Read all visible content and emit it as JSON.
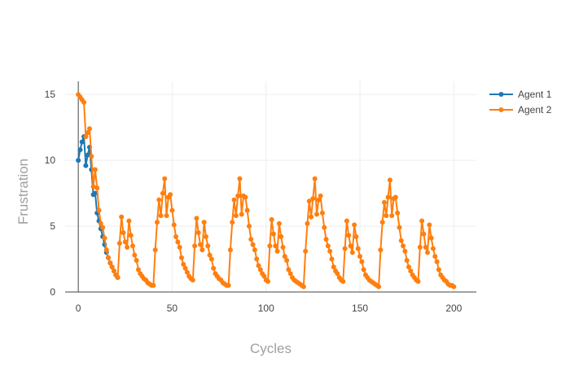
{
  "chart_data": {
    "type": "line",
    "title": "",
    "xlabel": "Cycles",
    "ylabel": "Frustration",
    "xlim": [
      -7,
      212
    ],
    "ylim": [
      0,
      16
    ],
    "x_ticks": [
      0,
      50,
      100,
      150,
      200
    ],
    "y_ticks": [
      0,
      5,
      10,
      15
    ],
    "x_tick_labels": [
      "0",
      "50",
      "100",
      "150",
      "200"
    ],
    "y_tick_labels": [
      "0",
      "5",
      "10",
      "15"
    ],
    "grid": true,
    "legend_position": "top-right",
    "series": [
      {
        "name": "Agent 1",
        "color": "#1f77b4",
        "x": [
          0,
          1,
          2,
          3,
          4,
          5,
          6,
          7,
          8,
          9,
          10,
          11,
          12,
          13,
          14,
          15,
          16,
          17,
          18,
          19,
          20,
          21
        ],
        "y": [
          10.0,
          10.8,
          11.4,
          11.8,
          9.6,
          10.4,
          11.0,
          9.3,
          7.4,
          7.5,
          6.0,
          5.4,
          4.8,
          4.2,
          3.6,
          3.0,
          2.6,
          2.2,
          1.9,
          1.6,
          1.3,
          1.1
        ]
      },
      {
        "name": "Agent 2",
        "color": "#ff7f0e",
        "x": [
          0,
          1,
          2,
          3,
          4,
          5,
          6,
          7,
          8,
          9,
          10,
          11,
          12,
          13,
          14,
          15,
          16,
          17,
          18,
          19,
          20,
          21,
          22,
          23,
          24,
          25,
          26,
          27,
          28,
          29,
          30,
          31,
          32,
          33,
          34,
          35,
          36,
          37,
          38,
          39,
          40,
          41,
          42,
          43,
          44,
          45,
          46,
          47,
          48,
          49,
          50,
          51,
          52,
          53,
          54,
          55,
          56,
          57,
          58,
          59,
          60,
          61,
          62,
          63,
          64,
          65,
          66,
          67,
          68,
          69,
          70,
          71,
          72,
          73,
          74,
          75,
          76,
          77,
          78,
          79,
          80,
          81,
          82,
          83,
          84,
          85,
          86,
          87,
          88,
          89,
          90,
          91,
          92,
          93,
          94,
          95,
          96,
          97,
          98,
          99,
          100,
          101,
          102,
          103,
          104,
          105,
          106,
          107,
          108,
          109,
          110,
          111,
          112,
          113,
          114,
          115,
          116,
          117,
          118,
          119,
          120,
          121,
          122,
          123,
          124,
          125,
          126,
          127,
          128,
          129,
          130,
          131,
          132,
          133,
          134,
          135,
          136,
          137,
          138,
          139,
          140,
          141,
          142,
          143,
          144,
          145,
          146,
          147,
          148,
          149,
          150,
          151,
          152,
          153,
          154,
          155,
          156,
          157,
          158,
          159,
          160,
          161,
          162,
          163,
          164,
          165,
          166,
          167,
          168,
          169,
          170,
          171,
          172,
          173,
          174,
          175,
          176,
          177,
          178,
          179,
          180,
          181,
          182,
          183,
          184,
          185,
          186,
          187,
          188,
          189,
          190,
          191,
          192,
          193,
          194,
          195,
          196,
          197,
          198,
          199,
          200
        ],
        "y": [
          15.0,
          14.8,
          14.6,
          14.4,
          11.8,
          12.1,
          12.4,
          10.3,
          8.0,
          9.3,
          7.9,
          6.2,
          5.2,
          4.9,
          4.1,
          3.2,
          2.6,
          2.2,
          1.9,
          1.6,
          1.3,
          1.1,
          3.7,
          5.7,
          4.5,
          3.8,
          3.4,
          5.4,
          4.3,
          3.5,
          2.8,
          2.4,
          1.7,
          1.4,
          1.2,
          1.0,
          0.9,
          0.7,
          0.6,
          0.5,
          0.5,
          3.2,
          5.3,
          7.0,
          5.8,
          7.5,
          8.6,
          5.8,
          7.2,
          7.4,
          6.2,
          5.1,
          4.2,
          3.8,
          3.4,
          2.6,
          2.1,
          1.8,
          1.5,
          1.2,
          1.0,
          0.9,
          3.5,
          5.6,
          4.5,
          3.6,
          3.2,
          5.3,
          4.2,
          3.5,
          2.8,
          2.5,
          1.8,
          1.4,
          1.2,
          1.0,
          0.9,
          0.7,
          0.6,
          0.5,
          0.5,
          3.2,
          5.3,
          7.0,
          5.8,
          7.3,
          8.6,
          5.9,
          7.3,
          7.2,
          6.2,
          5.0,
          4.0,
          3.6,
          3.2,
          2.5,
          2.0,
          1.7,
          1.4,
          1.2,
          0.9,
          0.8,
          3.5,
          5.5,
          4.4,
          3.5,
          3.1,
          5.2,
          4.2,
          3.4,
          2.7,
          2.4,
          1.7,
          1.4,
          1.1,
          0.9,
          0.8,
          0.7,
          0.6,
          0.5,
          0.4,
          3.1,
          5.2,
          6.9,
          5.7,
          7.1,
          8.6,
          5.9,
          7.0,
          7.3,
          6.0,
          4.9,
          4.0,
          3.5,
          3.1,
          2.5,
          1.9,
          1.6,
          1.4,
          1.1,
          0.9,
          0.8,
          3.3,
          5.4,
          4.3,
          3.5,
          3.0,
          5.1,
          4.2,
          3.3,
          2.7,
          2.3,
          1.7,
          1.3,
          1.1,
          0.9,
          0.8,
          0.7,
          0.6,
          0.5,
          0.4,
          3.2,
          5.3,
          6.8,
          5.8,
          7.2,
          8.5,
          5.8,
          7.1,
          7.2,
          6.0,
          4.9,
          3.9,
          3.5,
          3.1,
          2.4,
          1.9,
          1.6,
          1.3,
          1.1,
          0.9,
          0.8,
          3.4,
          5.4,
          4.4,
          3.4,
          3.0,
          5.1,
          4.1,
          3.3,
          2.7,
          2.3,
          1.7,
          1.3,
          1.1,
          0.9,
          0.8,
          0.6,
          0.5,
          0.5,
          0.4
        ]
      }
    ]
  }
}
